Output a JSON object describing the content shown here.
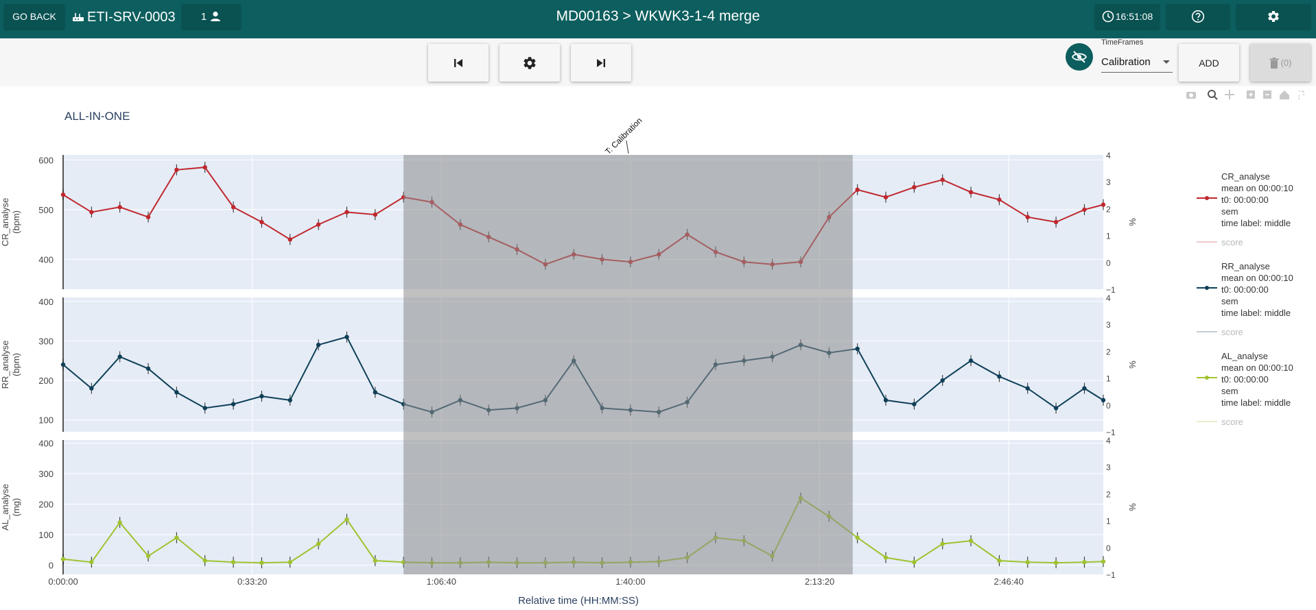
{
  "header": {
    "go_back_label": "GO BACK",
    "server_name": "ETI-SRV-0003",
    "user_count": "1",
    "title": "MD00163 > WKWK3-1-4 merge",
    "clock": "16:51:08"
  },
  "toolbar": {
    "timeframes_label": "TimeFrames",
    "timeframe_selected": "Calibration",
    "add_label": "ADD",
    "delete_count": "(0)"
  },
  "colors": {
    "header": "#0d5e5e",
    "cr": "#c0272d",
    "rr": "#0e3f57",
    "al": "#9fc32f"
  },
  "chart_data": {
    "type": "line",
    "title": "ALL-IN-ONE",
    "xlabel": "Relative time (HH:MM:SS)",
    "x_range_seconds": [
      0,
      11000
    ],
    "x_ticks": [
      {
        "value": 0,
        "label": "0:00:00"
      },
      {
        "value": 2000,
        "label": "0:33:20"
      },
      {
        "value": 4000,
        "label": "1:06:40"
      },
      {
        "value": 6000,
        "label": "1:40:00"
      },
      {
        "value": 8000,
        "label": "2:13:20"
      },
      {
        "value": 10000,
        "label": "2:46:40"
      }
    ],
    "shaded_region": {
      "start_seconds": 3600,
      "end_seconds": 8350,
      "annotation": "T: Calibration",
      "annotation_at_seconds": 6000
    },
    "right_axis": {
      "label": "%",
      "range": [
        -1,
        4
      ],
      "ticks": [
        -1,
        0,
        1,
        2,
        3,
        4
      ]
    },
    "panels": [
      {
        "name": "CR_analyse",
        "ylabel": "CR_analyse (bpm)",
        "ylabel_line1": "CR_analyse",
        "ylabel_line2": "(bpm)",
        "ylim": [
          340,
          610
        ],
        "yticks": [
          400,
          500,
          600
        ],
        "x": [
          0,
          300,
          600,
          900,
          1200,
          1500,
          1800,
          2100,
          2400,
          2700,
          3000,
          3300,
          3600,
          3900,
          4200,
          4500,
          4800,
          5100,
          5400,
          5700,
          6000,
          6300,
          6600,
          6900,
          7200,
          7500,
          7800,
          8100,
          8400,
          8700,
          9000,
          9300,
          9600,
          9900,
          10200,
          10500,
          10800,
          11000
        ],
        "values": [
          530,
          495,
          505,
          485,
          580,
          585,
          505,
          475,
          440,
          470,
          495,
          490,
          525,
          515,
          470,
          445,
          420,
          390,
          410,
          400,
          395,
          410,
          450,
          415,
          395,
          390,
          395,
          485,
          540,
          525,
          545,
          560,
          535,
          520,
          485,
          475,
          500,
          510
        ]
      },
      {
        "name": "RR_analyse",
        "ylabel": "RR_analyse (bpm)",
        "ylabel_line1": "RR_analyse",
        "ylabel_line2": "(bpm)",
        "ylim": [
          70,
          410
        ],
        "yticks": [
          100,
          200,
          300,
          400
        ],
        "x": [
          0,
          300,
          600,
          900,
          1200,
          1500,
          1800,
          2100,
          2400,
          2700,
          3000,
          3300,
          3600,
          3900,
          4200,
          4500,
          4800,
          5100,
          5400,
          5700,
          6000,
          6300,
          6600,
          6900,
          7200,
          7500,
          7800,
          8100,
          8400,
          8700,
          9000,
          9300,
          9600,
          9900,
          10200,
          10500,
          10800,
          11000
        ],
        "values": [
          240,
          180,
          260,
          230,
          170,
          130,
          140,
          160,
          150,
          290,
          310,
          170,
          140,
          120,
          150,
          125,
          130,
          150,
          250,
          130,
          125,
          120,
          145,
          240,
          250,
          260,
          290,
          270,
          280,
          150,
          140,
          200,
          250,
          210,
          180,
          130,
          180,
          150
        ]
      },
      {
        "name": "AL_analyse",
        "ylabel": "AL_analyse (mg)",
        "ylabel_line1": "AL_analyse",
        "ylabel_line2": "(mg)",
        "ylim": [
          -30,
          410
        ],
        "yticks": [
          0,
          100,
          200,
          300,
          400
        ],
        "x": [
          0,
          300,
          600,
          900,
          1200,
          1500,
          1800,
          2100,
          2400,
          2700,
          3000,
          3300,
          3600,
          3900,
          4200,
          4500,
          4800,
          5100,
          5400,
          5700,
          6000,
          6300,
          6600,
          6900,
          7200,
          7500,
          7800,
          8100,
          8400,
          8700,
          9000,
          9300,
          9600,
          9900,
          10200,
          10500,
          10800,
          11000
        ],
        "values": [
          20,
          10,
          140,
          30,
          90,
          15,
          10,
          8,
          10,
          70,
          150,
          15,
          10,
          8,
          8,
          10,
          8,
          8,
          10,
          8,
          10,
          12,
          25,
          90,
          80,
          30,
          220,
          160,
          90,
          25,
          10,
          70,
          80,
          15,
          10,
          8,
          10,
          12
        ]
      }
    ],
    "legend": [
      {
        "name": "CR_analyse",
        "lines": [
          "CR_analyse",
          "mean on 00:00:10",
          "t0: 00:00:00",
          "sem",
          "time label: middle"
        ],
        "score": "score"
      },
      {
        "name": "RR_analyse",
        "lines": [
          "RR_analyse",
          "mean on 00:00:10",
          "t0: 00:00:00",
          "sem",
          "time label: middle"
        ],
        "score": "score"
      },
      {
        "name": "AL_analyse",
        "lines": [
          "AL_analyse",
          "mean on 00:00:10",
          "t0: 00:00:00",
          "sem",
          "time label: middle"
        ],
        "score": "score"
      }
    ],
    "legend_position": "right"
  }
}
